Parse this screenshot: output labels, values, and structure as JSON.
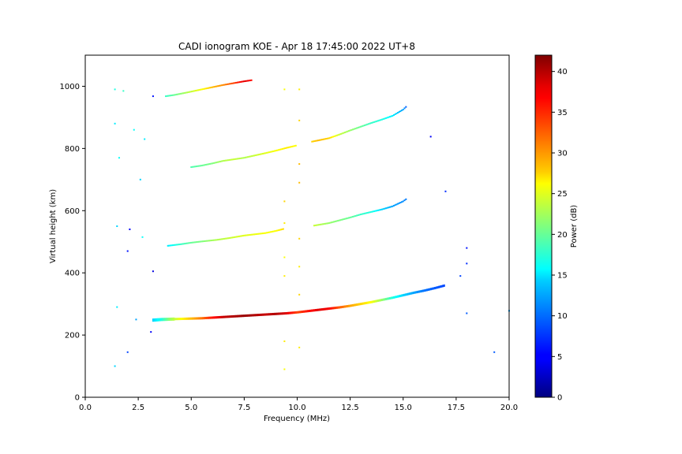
{
  "chart_data": {
    "type": "scatter",
    "title": "CADI ionogram KOE - Apr 18 17:45:00 2022 UT+8",
    "xlabel": "Frequency (MHz)",
    "ylabel": "Virtual height (km)",
    "xlim": [
      0,
      20
    ],
    "ylim": [
      0,
      1100
    ],
    "xticks": [
      "0.0",
      "2.5",
      "5.0",
      "7.5",
      "10.0",
      "12.5",
      "15.0",
      "17.5",
      "20.0"
    ],
    "yticks": [
      "0",
      "200",
      "400",
      "600",
      "800",
      "1000"
    ],
    "grid": false,
    "colorbar": {
      "label": "Power (dB)",
      "range": [
        0,
        42
      ],
      "ticks": [
        "0",
        "5",
        "10",
        "15",
        "20",
        "25",
        "30",
        "35",
        "40"
      ],
      "colormap": "jet"
    },
    "traces": [
      {
        "name": "",
        "points": [
          [
            3.2,
            248,
            14
          ],
          [
            3.6,
            250,
            17
          ],
          [
            4.0,
            251,
            22
          ],
          [
            4.5,
            252,
            26
          ],
          [
            5.0,
            253,
            29
          ],
          [
            5.5,
            254,
            32
          ],
          [
            6.0,
            256,
            36
          ],
          [
            6.5,
            258,
            39
          ],
          [
            7.0,
            260,
            40
          ],
          [
            7.5,
            262,
            41
          ],
          [
            8.0,
            264,
            40
          ],
          [
            8.5,
            266,
            39
          ],
          [
            9.0,
            268,
            40
          ],
          [
            9.5,
            270,
            38
          ],
          [
            10.0,
            273,
            34
          ],
          [
            10.5,
            277,
            36
          ],
          [
            11.0,
            281,
            38
          ],
          [
            11.5,
            285,
            37
          ],
          [
            12.0,
            289,
            33
          ],
          [
            12.5,
            294,
            30
          ],
          [
            13.0,
            300,
            28
          ],
          [
            13.5,
            306,
            26
          ],
          [
            14.0,
            313,
            22
          ],
          [
            14.5,
            320,
            17
          ],
          [
            15.0,
            328,
            14
          ],
          [
            15.5,
            336,
            12
          ],
          [
            16.0,
            343,
            10
          ],
          [
            16.5,
            351,
            9
          ],
          [
            17.0,
            360,
            8
          ]
        ]
      },
      {
        "name": "",
        "points": [
          [
            3.9,
            487,
            15
          ],
          [
            4.5,
            492,
            18
          ],
          [
            5.0,
            497,
            20
          ],
          [
            5.5,
            501,
            21
          ],
          [
            6.2,
            506,
            23
          ],
          [
            6.8,
            512,
            24
          ],
          [
            7.5,
            520,
            25
          ],
          [
            8.5,
            528,
            26
          ],
          [
            9.0,
            535,
            26
          ],
          [
            9.4,
            542,
            28
          ]
        ]
      },
      {
        "name": "",
        "points": [
          [
            10.8,
            552,
            24
          ],
          [
            11.5,
            560,
            22
          ],
          [
            12.5,
            578,
            20
          ],
          [
            13.0,
            588,
            18
          ],
          [
            13.5,
            596,
            17
          ],
          [
            14.0,
            604,
            14
          ],
          [
            14.5,
            614,
            12
          ],
          [
            15.0,
            630,
            11
          ],
          [
            15.2,
            640,
            10
          ]
        ]
      },
      {
        "name": "",
        "points": [
          [
            5.0,
            740,
            19
          ],
          [
            5.5,
            745,
            20
          ],
          [
            6.0,
            752,
            21
          ],
          [
            6.5,
            760,
            23
          ],
          [
            7.0,
            765,
            24
          ],
          [
            7.5,
            770,
            23
          ],
          [
            8.5,
            785,
            25
          ],
          [
            9.0,
            793,
            26
          ],
          [
            9.5,
            802,
            27
          ],
          [
            10.0,
            810,
            26
          ]
        ]
      },
      {
        "name": "",
        "points": [
          [
            10.7,
            822,
            28
          ],
          [
            11.0,
            826,
            29
          ],
          [
            11.5,
            833,
            28
          ],
          [
            12.0,
            845,
            24
          ],
          [
            12.5,
            858,
            22
          ],
          [
            13.0,
            870,
            20
          ],
          [
            13.5,
            882,
            18
          ],
          [
            14.0,
            893,
            17
          ],
          [
            14.5,
            905,
            15
          ],
          [
            15.0,
            925,
            12
          ],
          [
            15.2,
            938,
            8
          ]
        ]
      },
      {
        "name": "",
        "points": [
          [
            3.8,
            968,
            18
          ],
          [
            4.2,
            972,
            20
          ],
          [
            4.8,
            980,
            23
          ],
          [
            5.5,
            990,
            26
          ],
          [
            6.0,
            997,
            29
          ],
          [
            6.5,
            1004,
            31
          ],
          [
            7.0,
            1010,
            34
          ],
          [
            7.5,
            1016,
            38
          ],
          [
            7.9,
            1020,
            36
          ]
        ]
      },
      {
        "name": "",
        "points": [
          [
            9.4,
            90,
            26
          ],
          [
            9.4,
            180,
            27
          ],
          [
            9.4,
            390,
            27
          ],
          [
            9.4,
            450,
            26
          ],
          [
            9.4,
            560,
            27
          ],
          [
            9.4,
            630,
            28
          ],
          [
            9.4,
            990,
            26
          ],
          [
            10.1,
            160,
            27
          ],
          [
            10.1,
            330,
            28
          ],
          [
            10.1,
            420,
            27
          ],
          [
            10.1,
            510,
            28
          ],
          [
            10.1,
            690,
            29
          ],
          [
            10.1,
            750,
            29
          ],
          [
            10.1,
            890,
            28
          ],
          [
            10.1,
            990,
            27
          ]
        ]
      },
      {
        "name": "",
        "points": [
          [
            1.4,
            100,
            14
          ],
          [
            1.5,
            290,
            15
          ],
          [
            1.5,
            550,
            14
          ],
          [
            1.6,
            770,
            16
          ],
          [
            1.4,
            880,
            15
          ],
          [
            1.4,
            990,
            17
          ],
          [
            1.8,
            985,
            18
          ],
          [
            2.0,
            145,
            8
          ],
          [
            2.0,
            470,
            6
          ],
          [
            2.1,
            540,
            5
          ],
          [
            2.3,
            860,
            16
          ],
          [
            2.4,
            250,
            12
          ],
          [
            2.6,
            700,
            14
          ],
          [
            2.7,
            515,
            16
          ],
          [
            2.8,
            830,
            15
          ],
          [
            3.1,
            210,
            5
          ],
          [
            3.2,
            405,
            4
          ],
          [
            3.2,
            968,
            6
          ],
          [
            16.3,
            838,
            5
          ],
          [
            17.0,
            662,
            7
          ],
          [
            17.7,
            390,
            8
          ],
          [
            18.0,
            270,
            9
          ],
          [
            18.0,
            430,
            7
          ],
          [
            18.0,
            480,
            6
          ],
          [
            19.3,
            145,
            9
          ],
          [
            20.0,
            278,
            12
          ]
        ]
      }
    ]
  }
}
